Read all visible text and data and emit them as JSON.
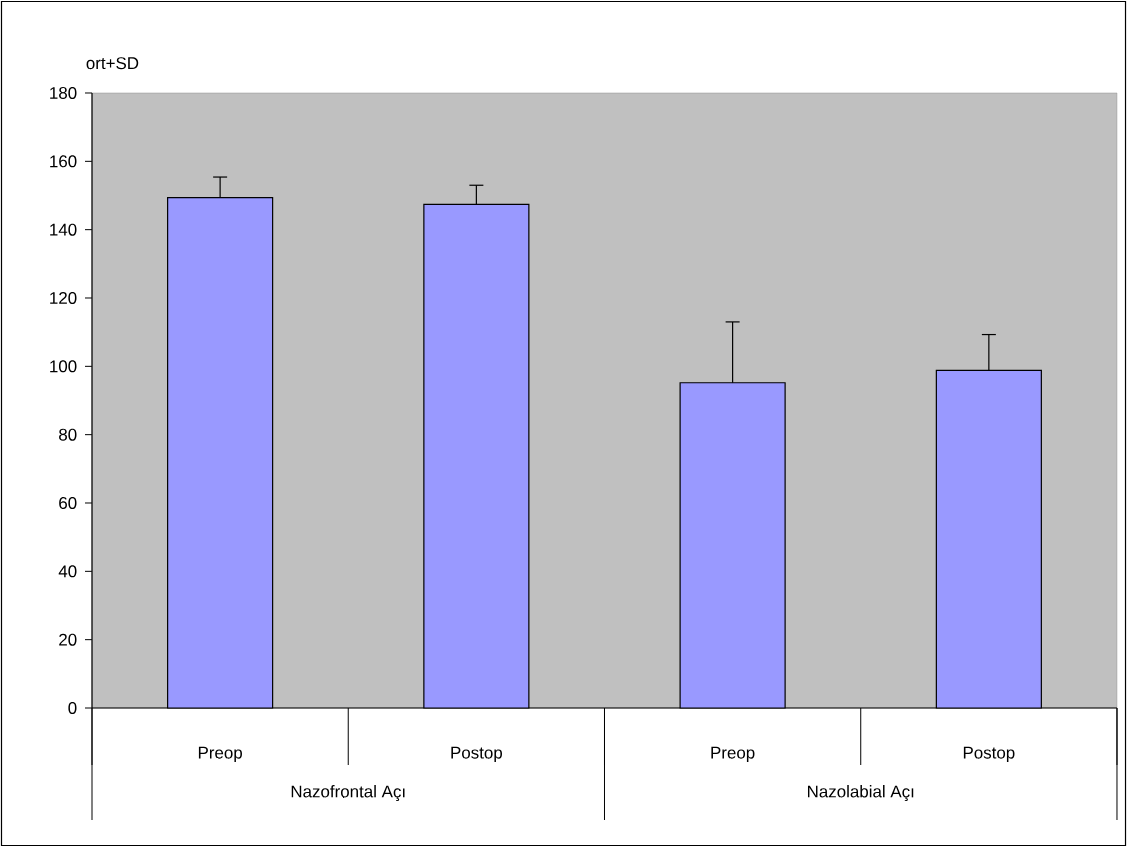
{
  "chart_data": {
    "type": "bar",
    "ylabel": "ort+SD",
    "categories": [
      "Preop",
      "Postop",
      "Preop",
      "Postop"
    ],
    "values": [
      149.4,
      147.4,
      95.2,
      98.8
    ],
    "errors": [
      [
        149.4,
        155.4
      ],
      [
        147.4,
        153.0
      ],
      [
        95.2,
        113.0
      ],
      [
        98.8,
        109.3
      ]
    ],
    "color": "#9999ff",
    "ylim": [
      0,
      180
    ],
    "yticks": [
      0,
      20,
      40,
      60,
      80,
      100,
      120,
      140,
      160,
      180
    ],
    "annotations": [
      "Nazofrontal Açı",
      "Nazolabial Açı"
    ]
  }
}
